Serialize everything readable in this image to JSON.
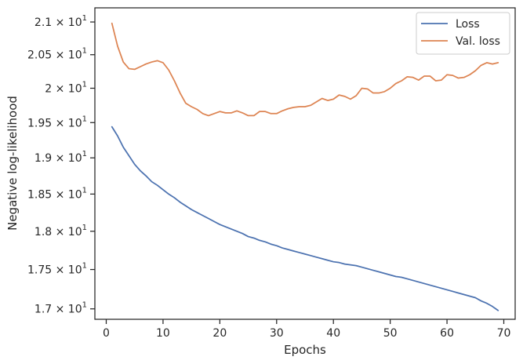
{
  "chart_data": {
    "type": "line",
    "xlabel": "Epochs",
    "ylabel": "Negative log-likelihood",
    "xlim": [
      -2,
      72
    ],
    "ylim": [
      16.87,
      21.22
    ],
    "y_scale": "log",
    "grid": false,
    "legend_position": "top-right",
    "x_ticks": [
      0,
      10,
      20,
      30,
      40,
      50,
      60,
      70
    ],
    "x_tick_labels": [
      "0",
      "10",
      "20",
      "30",
      "40",
      "50",
      "60",
      "70"
    ],
    "y_ticks": [
      {
        "value": 17.0,
        "mantissa": "1.7"
      },
      {
        "value": 17.5,
        "mantissa": "1.75"
      },
      {
        "value": 18.0,
        "mantissa": "1.8"
      },
      {
        "value": 18.5,
        "mantissa": "1.85"
      },
      {
        "value": 19.0,
        "mantissa": "1.9"
      },
      {
        "value": 19.5,
        "mantissa": "1.95"
      },
      {
        "value": 20.0,
        "mantissa": "2"
      },
      {
        "value": 20.5,
        "mantissa": "2.05"
      },
      {
        "value": 21.0,
        "mantissa": "2.1"
      }
    ],
    "y_tick_format": {
      "times": "×",
      "base": "10",
      "exponent": "1"
    },
    "x": [
      1,
      2,
      3,
      4,
      5,
      6,
      7,
      8,
      9,
      10,
      11,
      12,
      13,
      14,
      15,
      16,
      17,
      18,
      19,
      20,
      21,
      22,
      23,
      24,
      25,
      26,
      27,
      28,
      29,
      30,
      31,
      32,
      33,
      34,
      35,
      36,
      37,
      38,
      39,
      40,
      41,
      42,
      43,
      44,
      45,
      46,
      47,
      48,
      49,
      50,
      51,
      52,
      53,
      54,
      55,
      56,
      57,
      58,
      59,
      60,
      61,
      62,
      63,
      64,
      65,
      66,
      67,
      68,
      69
    ],
    "series": [
      {
        "name": "Loss",
        "color": "#4c72b0",
        "values": [
          19.44,
          19.31,
          19.15,
          19.03,
          18.91,
          18.82,
          18.75,
          18.67,
          18.62,
          18.56,
          18.5,
          18.45,
          18.39,
          18.34,
          18.29,
          18.25,
          18.21,
          18.17,
          18.13,
          18.09,
          18.06,
          18.03,
          18.0,
          17.97,
          17.93,
          17.91,
          17.88,
          17.86,
          17.83,
          17.81,
          17.78,
          17.76,
          17.74,
          17.72,
          17.7,
          17.68,
          17.66,
          17.64,
          17.62,
          17.6,
          17.59,
          17.57,
          17.56,
          17.55,
          17.53,
          17.51,
          17.49,
          17.47,
          17.45,
          17.43,
          17.41,
          17.4,
          17.38,
          17.36,
          17.34,
          17.32,
          17.3,
          17.28,
          17.26,
          17.24,
          17.22,
          17.2,
          17.18,
          17.16,
          17.14,
          17.1,
          17.07,
          17.03,
          16.98
        ]
      },
      {
        "name": "Val. loss",
        "color": "#dd8452",
        "values": [
          20.98,
          20.63,
          20.39,
          20.29,
          20.28,
          20.32,
          20.36,
          20.39,
          20.41,
          20.38,
          20.27,
          20.11,
          19.93,
          19.78,
          19.73,
          19.69,
          19.63,
          19.6,
          19.63,
          19.66,
          19.64,
          19.64,
          19.67,
          19.64,
          19.6,
          19.6,
          19.66,
          19.66,
          19.63,
          19.63,
          19.67,
          19.7,
          19.72,
          19.73,
          19.73,
          19.75,
          19.8,
          19.85,
          19.82,
          19.84,
          19.9,
          19.88,
          19.84,
          19.89,
          20.0,
          19.99,
          19.93,
          19.93,
          19.95,
          20.0,
          20.07,
          20.11,
          20.17,
          20.16,
          20.12,
          20.18,
          20.18,
          20.11,
          20.12,
          20.2,
          20.19,
          20.15,
          20.16,
          20.2,
          20.26,
          20.34,
          20.38,
          20.36,
          20.38
        ]
      }
    ]
  }
}
